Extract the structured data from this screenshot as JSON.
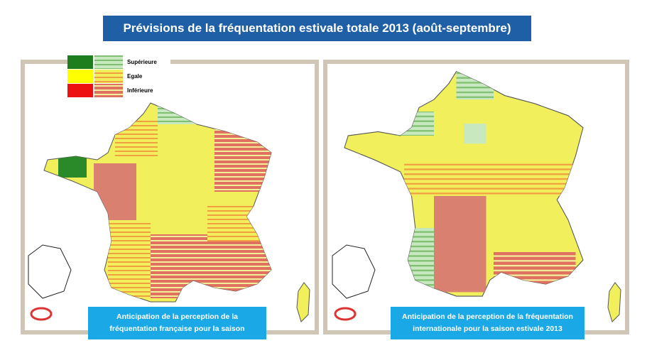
{
  "title": "Prévisions de la fréquentation estivale totale 2013 (août-septembre)",
  "legend": [
    {
      "label": "Supérieure"
    },
    {
      "label": "Egale"
    },
    {
      "label": "Inférieure"
    }
  ],
  "maps": [
    {
      "caption": [
        "Anticipation de la perception de la",
        "fréquentation française pour la saison"
      ]
    },
    {
      "caption": [
        "Anticipation de la perception de la fréquentation",
        "internationale pour la saison estivale 2013"
      ]
    }
  ]
}
